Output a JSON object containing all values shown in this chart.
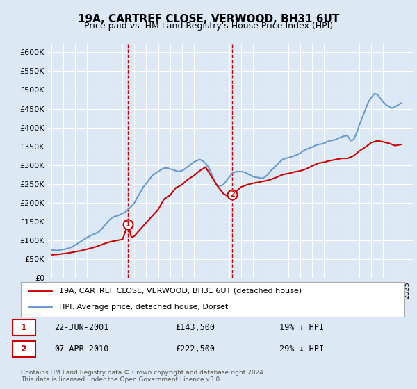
{
  "title": "19A, CARTREF CLOSE, VERWOOD, BH31 6UT",
  "subtitle": "Price paid vs. HM Land Registry's House Price Index (HPI)",
  "ylabel_ticks": [
    "£0",
    "£50K",
    "£100K",
    "£150K",
    "£200K",
    "£250K",
    "£300K",
    "£350K",
    "£400K",
    "£450K",
    "£500K",
    "£550K",
    "£600K"
  ],
  "ylim": [
    0,
    620000
  ],
  "xlim_start": 1995.0,
  "xlim_end": 2025.5,
  "background_color": "#dce9f5",
  "plot_bg_color": "#dce9f5",
  "red_line_color": "#cc0000",
  "blue_line_color": "#6699cc",
  "grid_color": "#ffffff",
  "annotation1": {
    "label": "1",
    "date": "22-JUN-2001",
    "price": 143500,
    "text": "22-JUN-2001    £143,500    19% ↓ HPI"
  },
  "annotation2": {
    "label": "2",
    "date": "07-APR-2010",
    "price": 222500,
    "text": "07-APR-2010    £222,500    29% ↓ HPI"
  },
  "legend_line1": "19A, CARTREF CLOSE, VERWOOD, BH31 6UT (detached house)",
  "legend_line2": "HPI: Average price, detached house, Dorset",
  "footer": "Contains HM Land Registry data © Crown copyright and database right 2024.\nThis data is licensed under the Open Government Licence v3.0.",
  "hpi_data_x": [
    1995.0,
    1995.25,
    1995.5,
    1995.75,
    1996.0,
    1996.25,
    1996.5,
    1996.75,
    1997.0,
    1997.25,
    1997.5,
    1997.75,
    1998.0,
    1998.25,
    1998.5,
    1998.75,
    1999.0,
    1999.25,
    1999.5,
    1999.75,
    2000.0,
    2000.25,
    2000.5,
    2000.75,
    2001.0,
    2001.25,
    2001.5,
    2001.75,
    2002.0,
    2002.25,
    2002.5,
    2002.75,
    2003.0,
    2003.25,
    2003.5,
    2003.75,
    2004.0,
    2004.25,
    2004.5,
    2004.75,
    2005.0,
    2005.25,
    2005.5,
    2005.75,
    2006.0,
    2006.25,
    2006.5,
    2006.75,
    2007.0,
    2007.25,
    2007.5,
    2007.75,
    2008.0,
    2008.25,
    2008.5,
    2008.75,
    2009.0,
    2009.25,
    2009.5,
    2009.75,
    2010.0,
    2010.25,
    2010.5,
    2010.75,
    2011.0,
    2011.25,
    2011.5,
    2011.75,
    2012.0,
    2012.25,
    2012.5,
    2012.75,
    2013.0,
    2013.25,
    2013.5,
    2013.75,
    2014.0,
    2014.25,
    2014.5,
    2014.75,
    2015.0,
    2015.25,
    2015.5,
    2015.75,
    2016.0,
    2016.25,
    2016.5,
    2016.75,
    2017.0,
    2017.25,
    2017.5,
    2017.75,
    2018.0,
    2018.25,
    2018.5,
    2018.75,
    2019.0,
    2019.25,
    2019.5,
    2019.75,
    2020.0,
    2020.25,
    2020.5,
    2020.75,
    2021.0,
    2021.25,
    2021.5,
    2021.75,
    2022.0,
    2022.25,
    2022.5,
    2022.75,
    2023.0,
    2023.25,
    2023.5,
    2023.75,
    2024.0,
    2024.25,
    2024.5
  ],
  "hpi_data_y": [
    75000,
    74000,
    73500,
    75000,
    76000,
    78000,
    80000,
    83000,
    88000,
    93000,
    98000,
    103000,
    108000,
    112000,
    116000,
    119000,
    123000,
    131000,
    140000,
    150000,
    158000,
    163000,
    165000,
    168000,
    172000,
    176000,
    183000,
    191000,
    200000,
    215000,
    228000,
    242000,
    252000,
    262000,
    272000,
    278000,
    283000,
    288000,
    292000,
    293000,
    290000,
    288000,
    285000,
    283000,
    285000,
    290000,
    296000,
    302000,
    308000,
    312000,
    315000,
    312000,
    305000,
    295000,
    278000,
    258000,
    245000,
    245000,
    248000,
    258000,
    268000,
    278000,
    282000,
    283000,
    283000,
    282000,
    278000,
    274000,
    270000,
    268000,
    267000,
    265000,
    268000,
    275000,
    285000,
    292000,
    300000,
    308000,
    315000,
    318000,
    320000,
    322000,
    325000,
    328000,
    332000,
    338000,
    342000,
    345000,
    348000,
    352000,
    355000,
    356000,
    358000,
    362000,
    365000,
    366000,
    368000,
    372000,
    375000,
    378000,
    378000,
    365000,
    368000,
    385000,
    408000,
    428000,
    448000,
    468000,
    480000,
    490000,
    488000,
    478000,
    468000,
    460000,
    455000,
    452000,
    455000,
    460000,
    465000
  ],
  "price_data_x": [
    1995.0,
    1995.5,
    1996.0,
    1996.5,
    1997.0,
    1997.5,
    1998.0,
    1998.5,
    1999.0,
    1999.5,
    2000.0,
    2000.5,
    2001.0,
    2001.45,
    2001.75,
    2002.0,
    2002.5,
    2003.0,
    2003.5,
    2004.0,
    2004.5,
    2005.0,
    2005.5,
    2006.0,
    2006.5,
    2007.0,
    2007.5,
    2008.0,
    2008.5,
    2009.0,
    2009.5,
    2010.0,
    2010.27,
    2010.5,
    2010.75,
    2011.0,
    2011.5,
    2012.0,
    2012.5,
    2013.0,
    2013.5,
    2014.0,
    2014.5,
    2015.0,
    2015.5,
    2016.0,
    2016.5,
    2017.0,
    2017.5,
    2018.0,
    2018.5,
    2019.0,
    2019.5,
    2020.0,
    2020.5,
    2021.0,
    2021.5,
    2022.0,
    2022.5,
    2023.0,
    2023.5,
    2024.0,
    2024.5
  ],
  "price_data_y": [
    62000,
    63000,
    65000,
    67000,
    70000,
    73000,
    77000,
    81000,
    86000,
    92000,
    97000,
    100000,
    103000,
    143500,
    108000,
    112000,
    130000,
    148000,
    165000,
    182000,
    210000,
    220000,
    240000,
    248000,
    262000,
    272000,
    285000,
    295000,
    270000,
    245000,
    225000,
    215000,
    222500,
    228000,
    235000,
    242000,
    248000,
    252000,
    255000,
    258000,
    262000,
    268000,
    275000,
    278000,
    282000,
    285000,
    290000,
    298000,
    305000,
    308000,
    312000,
    315000,
    318000,
    318000,
    325000,
    338000,
    348000,
    360000,
    365000,
    362000,
    358000,
    352000,
    355000
  ],
  "marker1_x": 2001.45,
  "marker1_y": 143500,
  "marker2_x": 2010.27,
  "marker2_y": 222500,
  "vline1_x": 2001.45,
  "vline2_x": 2010.27
}
